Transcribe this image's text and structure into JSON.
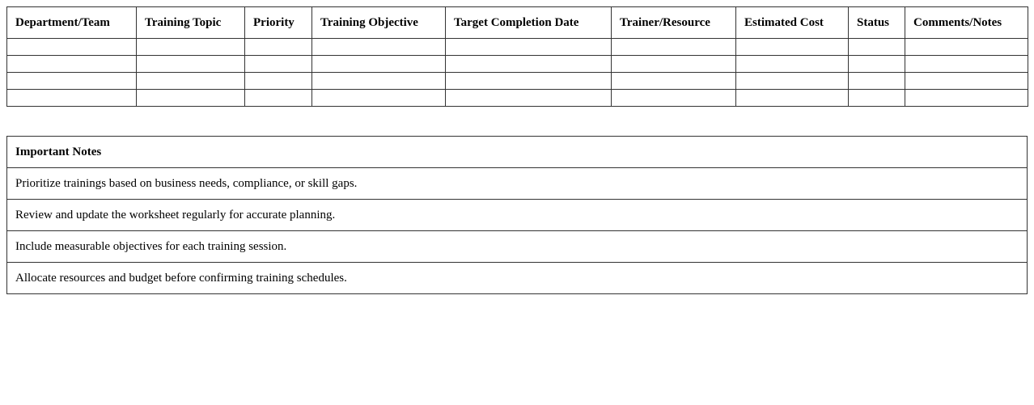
{
  "worksheet": {
    "headers": [
      "Department/Team",
      "Training Topic",
      "Priority",
      "Training Objective",
      "Target Completion Date",
      "Trainer/Resource",
      "Estimated Cost",
      "Status",
      "Comments/Notes"
    ],
    "empty_rows": 4
  },
  "notes": {
    "title": "Important Notes",
    "items": [
      "Prioritize trainings based on business needs, compliance, or skill gaps.",
      "Review and update the worksheet regularly for accurate planning.",
      "Include measurable objectives for each training session.",
      "Allocate resources and budget before confirming training schedules."
    ]
  }
}
